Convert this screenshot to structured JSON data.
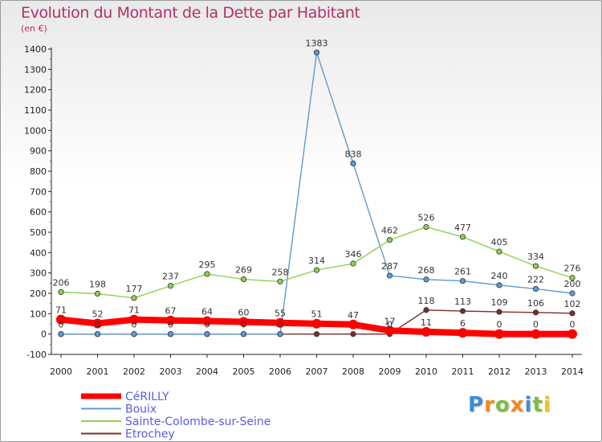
{
  "header": {
    "title": "Evolution du Montant de la Dette par Habitant",
    "unit": "(en €)"
  },
  "logo": {
    "text": "Proxiti",
    "letters": [
      {
        "ch": "P",
        "color": "#3a8fd6"
      },
      {
        "ch": "r",
        "color": "#f08a1c"
      },
      {
        "ch": "o",
        "color": "#78c043"
      },
      {
        "ch": "x",
        "color": "#f08a1c"
      },
      {
        "ch": "i",
        "color": "#3a8fd6"
      },
      {
        "ch": "t",
        "color": "#78c043"
      },
      {
        "ch": "i",
        "color": "#f0c419"
      }
    ]
  },
  "chart_data": {
    "type": "line",
    "title": "Evolution du Montant de la Dette par Habitant",
    "subtitle": "(en €)",
    "xlabel": "",
    "ylabel": "",
    "x": [
      "2000",
      "2001",
      "2002",
      "2003",
      "2004",
      "2005",
      "2006",
      "2007",
      "2008",
      "2009",
      "2010",
      "2011",
      "2012",
      "2013",
      "2014"
    ],
    "ylim": [
      -100,
      1400
    ],
    "yticks": [
      -100,
      0,
      100,
      200,
      300,
      400,
      500,
      600,
      700,
      800,
      900,
      1000,
      1100,
      1200,
      1300,
      1400
    ],
    "grid": false,
    "legend_position": "bottom-left",
    "series": [
      {
        "name": "CéRILLY",
        "color": "#ff0000",
        "emphasis": true,
        "values": [
          71,
          52,
          71,
          67,
          64,
          60,
          55,
          51,
          47,
          17,
          11,
          6,
          0,
          0,
          0
        ]
      },
      {
        "name": "Bouix",
        "color": "#5b9bd5",
        "values": [
          0,
          0,
          0,
          0,
          0,
          0,
          0,
          1383,
          838,
          287,
          268,
          261,
          240,
          222,
          200
        ]
      },
      {
        "name": "Sainte-Colombe-sur-Seine",
        "color": "#8fd14f",
        "values": [
          206,
          198,
          177,
          237,
          295,
          269,
          258,
          314,
          346,
          462,
          526,
          477,
          405,
          334,
          276
        ]
      },
      {
        "name": "Etrochey",
        "color": "#7b2c2c",
        "values": [
          0,
          0,
          0,
          0,
          0,
          0,
          0,
          0,
          0,
          0,
          118,
          113,
          109,
          106,
          102
        ]
      }
    ],
    "data_labels": [
      {
        "series": 2,
        "values": [
          206,
          198,
          177,
          237,
          295,
          269,
          258,
          314,
          346,
          462,
          526,
          477,
          405,
          334,
          276
        ]
      },
      {
        "series": 1,
        "values": [
          null,
          null,
          null,
          null,
          null,
          null,
          null,
          1383,
          838,
          287,
          268,
          261,
          240,
          222,
          200
        ]
      },
      {
        "series": 3,
        "values": [
          0,
          0,
          0,
          0,
          0,
          0,
          0,
          null,
          null,
          0,
          118,
          113,
          109,
          106,
          102
        ]
      },
      {
        "series": 0,
        "values": [
          71,
          52,
          71,
          67,
          64,
          60,
          55,
          51,
          47,
          17,
          11,
          6,
          0,
          0,
          0
        ]
      }
    ]
  }
}
